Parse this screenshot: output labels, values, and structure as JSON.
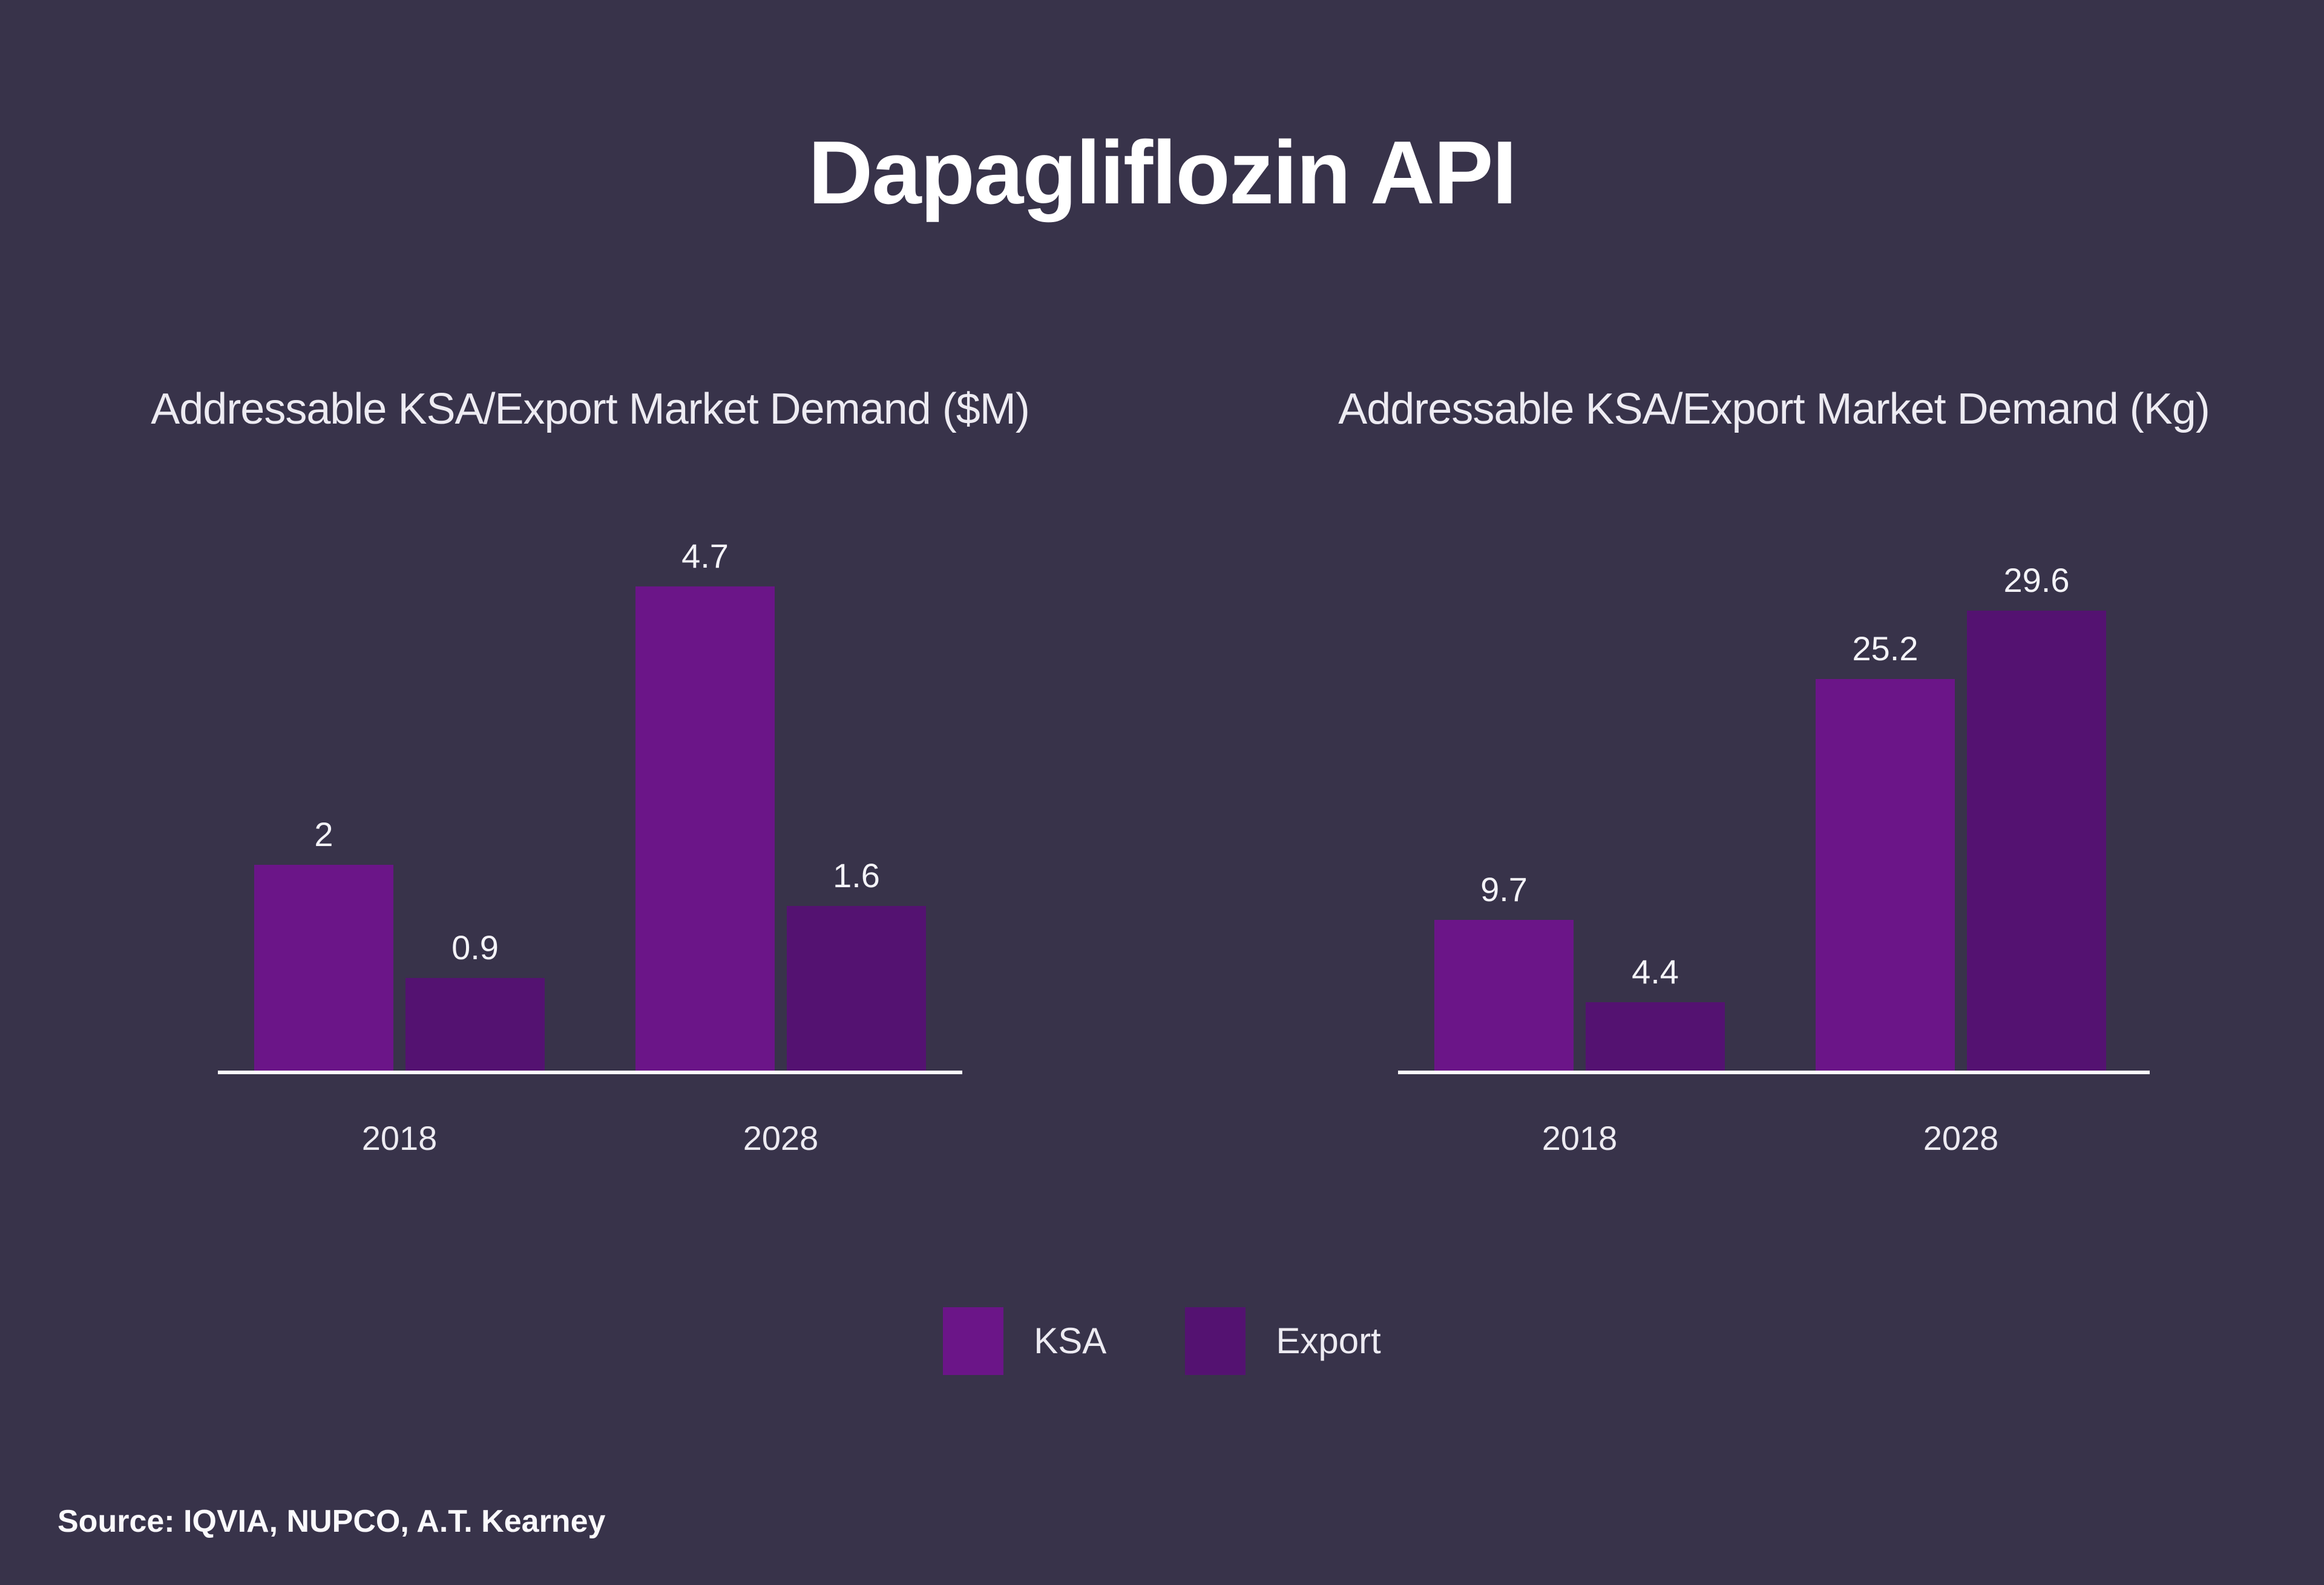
{
  "page": {
    "title": "Dapagliflozin API",
    "background_color": "#38334A",
    "source_note": "Source: IQVIA, NUPCO, A.T. Kearney",
    "axis_line_color": "#FCFBFD",
    "text_color": "#EDEBF2"
  },
  "legend": {
    "items": [
      {
        "label": "KSA",
        "color": "#6B1588"
      },
      {
        "label": "Export",
        "color": "#541271"
      }
    ]
  },
  "chart_data": [
    {
      "type": "bar",
      "title": "Addressable KSA/Export Market Demand ($M)",
      "categories": [
        "2018",
        "2028"
      ],
      "series": [
        {
          "name": "KSA",
          "values": [
            2,
            4.7
          ],
          "color": "#6B1588"
        },
        {
          "name": "Export",
          "values": [
            0.9,
            1.6
          ],
          "color": "#541271"
        }
      ],
      "value_labels": [
        "2",
        "0.9",
        "4.7",
        "1.6"
      ],
      "ylim": [
        0,
        4.7
      ],
      "grid": false,
      "xlabel": "",
      "ylabel": "",
      "legend_position": "bottom-shared"
    },
    {
      "type": "bar",
      "title": "Addressable KSA/Export Market Demand (Kg)",
      "categories": [
        "2018",
        "2028"
      ],
      "series": [
        {
          "name": "KSA",
          "values": [
            9.7,
            25.2
          ],
          "color": "#6B1588"
        },
        {
          "name": "Export",
          "values": [
            4.4,
            29.6
          ],
          "color": "#541271"
        }
      ],
      "value_labels": [
        "9.7",
        "4.4",
        "25.2",
        "29.6"
      ],
      "ylim": [
        0,
        29.6
      ],
      "grid": false,
      "xlabel": "",
      "ylabel": "",
      "legend_position": "bottom-shared"
    }
  ]
}
